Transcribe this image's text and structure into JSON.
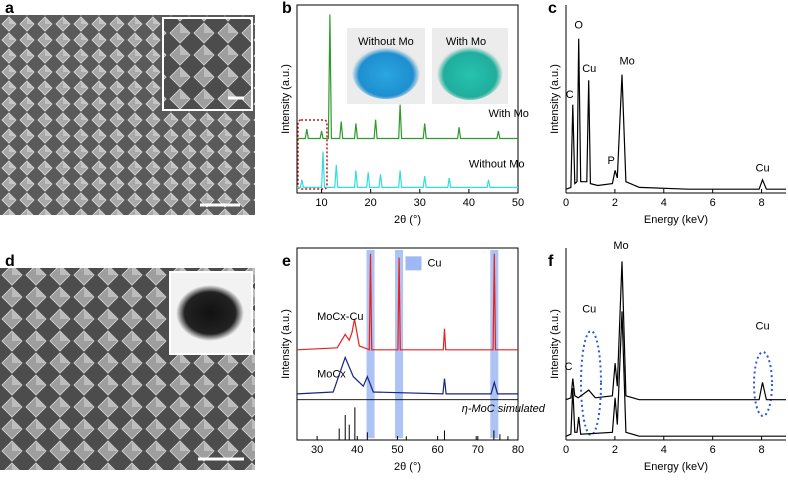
{
  "panel_labels": [
    "a",
    "b",
    "c",
    "d",
    "e",
    "f"
  ],
  "chart_data": [
    {
      "type": "line",
      "xlabel": "2θ (°)",
      "ylabel": "Intensity (a.u.)",
      "xlim": [
        5,
        50
      ],
      "xticks": [
        10,
        20,
        30,
        40,
        50
      ],
      "ylim": [
        0,
        100
      ],
      "box": true,
      "annotations": [
        {
          "text": "Without Mo",
          "color": "#000000"
        },
        {
          "text": "With Mo",
          "color": "#000000"
        }
      ],
      "series": [
        {
          "name": "With Mo",
          "color": "#2e9a2e",
          "x": [
            5,
            6.7,
            7,
            7.3,
            9.7,
            10,
            10.3,
            11.4,
            11.7,
            12,
            13.7,
            14,
            14.3,
            16.7,
            17,
            17.3,
            20.7,
            21,
            21.3,
            25.7,
            26,
            26.3,
            30.7,
            31,
            31.3,
            37.7,
            38,
            38.3,
            45.7,
            46,
            46.3,
            50
          ],
          "values": [
            29,
            29,
            34,
            29,
            29,
            33,
            29,
            29,
            95,
            29,
            29,
            38,
            29,
            29,
            37,
            29,
            29,
            39,
            29,
            29,
            47,
            29,
            29,
            37,
            29,
            29,
            35,
            29,
            29,
            33,
            29,
            29
          ]
        },
        {
          "name": "Without Mo",
          "color": "#33dddd",
          "x": [
            5,
            5.7,
            6,
            6.3,
            10,
            10.3,
            10.6,
            12.7,
            13,
            13.3,
            16.7,
            17,
            17.3,
            19.2,
            19.5,
            19.8,
            21.7,
            22,
            22.3,
            25.7,
            26,
            26.3,
            30.7,
            31,
            31.3,
            35.7,
            36,
            36.3,
            43.7,
            44,
            44.3,
            50
          ],
          "values": [
            3,
            3,
            7,
            3,
            3,
            22,
            3,
            3,
            15,
            3,
            3,
            12,
            3,
            3,
            11,
            3,
            3,
            10,
            3,
            3,
            12,
            3,
            3,
            9,
            3,
            3,
            8,
            3,
            3,
            7,
            3,
            3
          ]
        }
      ]
    },
    {
      "type": "line",
      "xlabel": "Energy (keV)",
      "ylabel": "Intensity (a.u.)",
      "xlim": [
        0,
        9
      ],
      "xticks": [
        0,
        2,
        4,
        6,
        8
      ],
      "ylim": [
        0,
        100
      ],
      "box": false,
      "annotations": [
        {
          "text": "C",
          "color": "#8a7a2a"
        },
        {
          "text": "O",
          "color": "#e02020"
        },
        {
          "text": "Cu",
          "color": "#2a5cd6"
        },
        {
          "text": "Mo",
          "color": "#1e9a3a"
        },
        {
          "text": "P",
          "color": "#d020d0"
        },
        {
          "text": "Cu",
          "color": "#2a5cd6"
        }
      ],
      "series": [
        {
          "color": "#000000",
          "x": [
            0,
            0.2,
            0.28,
            0.36,
            0.45,
            0.52,
            0.6,
            0.85,
            0.93,
            1.0,
            1.3,
            1.9,
            2.01,
            2.1,
            2.29,
            2.45,
            3,
            5,
            7.9,
            8.04,
            8.2,
            9
          ],
          "values": [
            2,
            3,
            47,
            5,
            6,
            82,
            6,
            6,
            60,
            5,
            4,
            5,
            12,
            8,
            63,
            6,
            3,
            2,
            2,
            7,
            2,
            2
          ]
        }
      ]
    },
    {
      "type": "line",
      "xlabel": "2θ (°)",
      "ylabel": "Intensity (a.u.)",
      "xlim": [
        25,
        80
      ],
      "xticks": [
        30,
        40,
        50,
        60,
        70,
        80
      ],
      "ylim": [
        0,
        100
      ],
      "box": true,
      "bands": {
        "name": "Cu",
        "color": "#9db8f2",
        "x": [
          43.3,
          50.4,
          74.1
        ]
      },
      "series": [
        {
          "name": "MoCx-Cu",
          "color": "#e8201e",
          "x": [
            25,
            35,
            37,
            38,
            38.7,
            39.3,
            40.5,
            43.0,
            43.3,
            43.6,
            50.1,
            50.4,
            50.7,
            61.4,
            61.7,
            62.0,
            73.8,
            74.1,
            74.4,
            80
          ],
          "values": [
            47,
            48,
            55,
            52,
            56,
            63,
            49,
            47,
            97,
            47,
            47,
            95,
            47,
            47,
            58,
            47,
            47,
            97,
            47,
            47
          ]
        },
        {
          "name": "MoCx",
          "color": "#1a237e",
          "x": [
            25,
            34,
            37,
            39,
            41.5,
            42.5,
            44,
            61.3,
            61.7,
            62.1,
            73.3,
            74.1,
            74.9,
            80
          ],
          "values": [
            24,
            25,
            43,
            33,
            28,
            33,
            25,
            24,
            32,
            24,
            24,
            30,
            24,
            24
          ]
        },
        {
          "name": "η-MoC simulated",
          "color": "#000000",
          "style": "stick",
          "x": [
            35.5,
            37.0,
            38.0,
            39.4,
            42.5,
            52.2,
            61.7,
            69.6,
            74.0,
            75.5,
            77.5
          ],
          "values": [
            6,
            13,
            8,
            17,
            4,
            2,
            5,
            2,
            5,
            3,
            2
          ]
        }
      ]
    },
    {
      "type": "line",
      "xlabel": "Energy (keV)",
      "ylabel": "Intensity (a.u.)",
      "xlim": [
        0,
        9
      ],
      "xticks": [
        0,
        2,
        4,
        6,
        8
      ],
      "ylim": [
        0,
        100
      ],
      "box": false,
      "annotations": [
        {
          "text": "C",
          "color": "#8a7a2a"
        },
        {
          "text": "Cu",
          "color": "#2a5cd6"
        },
        {
          "text": "Mo",
          "color": "#1e9a3a"
        },
        {
          "text": "Cu",
          "color": "#2a5cd6"
        }
      ],
      "series": [
        {
          "color": "#000000",
          "x": [
            0,
            0.2,
            0.28,
            0.36,
            0.5,
            0.93,
            1.2,
            1.9,
            2.01,
            2.1,
            2.29,
            2.45,
            3,
            7.9,
            8.04,
            8.2,
            9
          ],
          "values": [
            21,
            22,
            32,
            23,
            22,
            26,
            22,
            23,
            40,
            28,
            93,
            23,
            21,
            21,
            30,
            21,
            21
          ]
        },
        {
          "color": "#000000",
          "x": [
            0,
            0.2,
            0.28,
            0.36,
            0.45,
            0.52,
            0.6,
            1.9,
            2.01,
            2.1,
            2.29,
            2.45,
            3,
            9
          ],
          "values": [
            2,
            3,
            27,
            4,
            4,
            12,
            3,
            4,
            22,
            8,
            67,
            4,
            2,
            2
          ]
        }
      ]
    }
  ]
}
